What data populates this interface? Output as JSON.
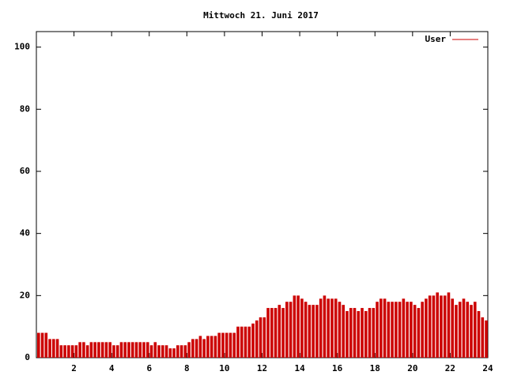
{
  "chart_data": {
    "type": "impulse",
    "title": "Mittwoch 21. Juni 2017",
    "series": [
      {
        "name": "User",
        "color": "#cc0000",
        "x": [
          0,
          0.2,
          0.4,
          0.6,
          0.8,
          1,
          1.2,
          1.4,
          1.6,
          1.8,
          2,
          2.2,
          2.4,
          2.6,
          2.8,
          3,
          3.2,
          3.4,
          3.6,
          3.8,
          4,
          4.2,
          4.4,
          4.6,
          4.8,
          5,
          5.2,
          5.4,
          5.6,
          5.8,
          6,
          6.2,
          6.4,
          6.6,
          6.8,
          7,
          7.2,
          7.4,
          7.6,
          7.8,
          8,
          8.2,
          8.4,
          8.6,
          8.8,
          9,
          9.2,
          9.4,
          9.6,
          9.8,
          10,
          10.2,
          10.4,
          10.6,
          10.8,
          11,
          11.2,
          11.4,
          11.6,
          11.8,
          12,
          12.2,
          12.4,
          12.6,
          12.8,
          13,
          13.2,
          13.4,
          13.6,
          13.8,
          14,
          14.2,
          14.4,
          14.6,
          14.8,
          15,
          15.2,
          15.4,
          15.6,
          15.8,
          16,
          16.2,
          16.4,
          16.6,
          16.8,
          17,
          17.2,
          17.4,
          17.6,
          17.8,
          18,
          18.2,
          18.4,
          18.6,
          18.8,
          19,
          19.2,
          19.4,
          19.6,
          19.8,
          20,
          20.2,
          20.4,
          20.6,
          20.8,
          21,
          21.2,
          21.4,
          21.6,
          21.8,
          22,
          22.2,
          22.4,
          22.6,
          22.8,
          23,
          23.2,
          23.4,
          23.6,
          23.8
        ],
        "values": [
          8,
          8,
          8,
          6,
          6,
          6,
          4,
          4,
          4,
          4,
          4,
          5,
          5,
          4,
          5,
          5,
          5,
          5,
          5,
          5,
          4,
          4,
          5,
          5,
          5,
          5,
          5,
          5,
          5,
          5,
          4,
          5,
          4,
          4,
          4,
          3,
          3,
          4,
          4,
          4,
          5,
          6,
          6,
          7,
          6,
          7,
          7,
          7,
          8,
          8,
          8,
          8,
          8,
          10,
          10,
          10,
          10,
          11,
          12,
          13,
          13,
          16,
          16,
          16,
          17,
          16,
          18,
          18,
          20,
          20,
          19,
          18,
          17,
          17,
          17,
          19,
          20,
          19,
          19,
          19,
          18,
          17,
          15,
          16,
          16,
          15,
          16,
          15,
          16,
          16,
          18,
          19,
          19,
          18,
          18,
          18,
          18,
          19,
          18,
          18,
          17,
          16,
          18,
          19,
          20,
          20,
          21,
          20,
          20,
          21,
          19,
          17,
          18,
          19,
          18,
          17,
          18,
          15,
          13,
          12
        ]
      }
    ],
    "xlim": [
      0,
      24
    ],
    "xticks": [
      2,
      4,
      6,
      8,
      10,
      12,
      14,
      16,
      18,
      20,
      22,
      24
    ],
    "ylim": [
      0,
      105
    ],
    "yticks": [
      0,
      20,
      40,
      60,
      80,
      100
    ],
    "legend": "top-right"
  }
}
